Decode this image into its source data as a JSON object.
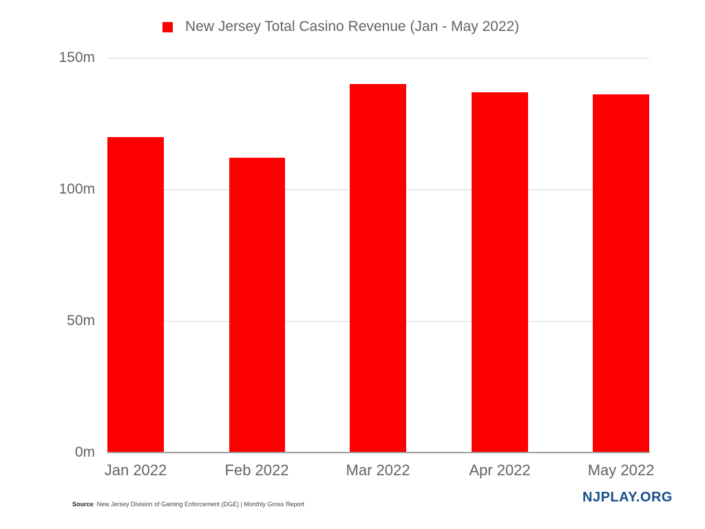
{
  "chart_data": {
    "type": "bar",
    "title": "",
    "legend": [
      "New Jersey Total Casino Revenue (Jan - May 2022)"
    ],
    "legend_position": "top",
    "categories": [
      "Jan 2022",
      "Feb 2022",
      "Mar 2022",
      "Apr 2022",
      "May 2022"
    ],
    "series": [
      {
        "name": "New Jersey Total Casino Revenue (Jan - May 2022)",
        "color": "#ff0000",
        "values": [
          120,
          112,
          140,
          137,
          136
        ]
      }
    ],
    "xlabel": "",
    "ylabel": "",
    "ylim": [
      0,
      150
    ],
    "yticks": [
      "0m",
      "50m",
      "100m",
      "150m"
    ],
    "grid": true
  },
  "legend": {
    "label": "New Jersey Total Casino Revenue (Jan - May 2022)",
    "color": "#ff0000"
  },
  "axis": {
    "y_ticks": [
      {
        "label": "150m",
        "value": 150
      },
      {
        "label": "100m",
        "value": 100
      },
      {
        "label": "50m",
        "value": 50
      },
      {
        "label": "0m",
        "value": 0
      }
    ],
    "x_ticks": [
      "Jan 2022",
      "Feb 2022",
      "Mar 2022",
      "Apr 2022",
      "May 2022"
    ]
  },
  "footer": {
    "source_label": "Source",
    "source_text": ": New Jersey Division of Gaming Enforcement (DGE) | Monthly Gross Report",
    "brand": "NJPLAY.ORG"
  }
}
